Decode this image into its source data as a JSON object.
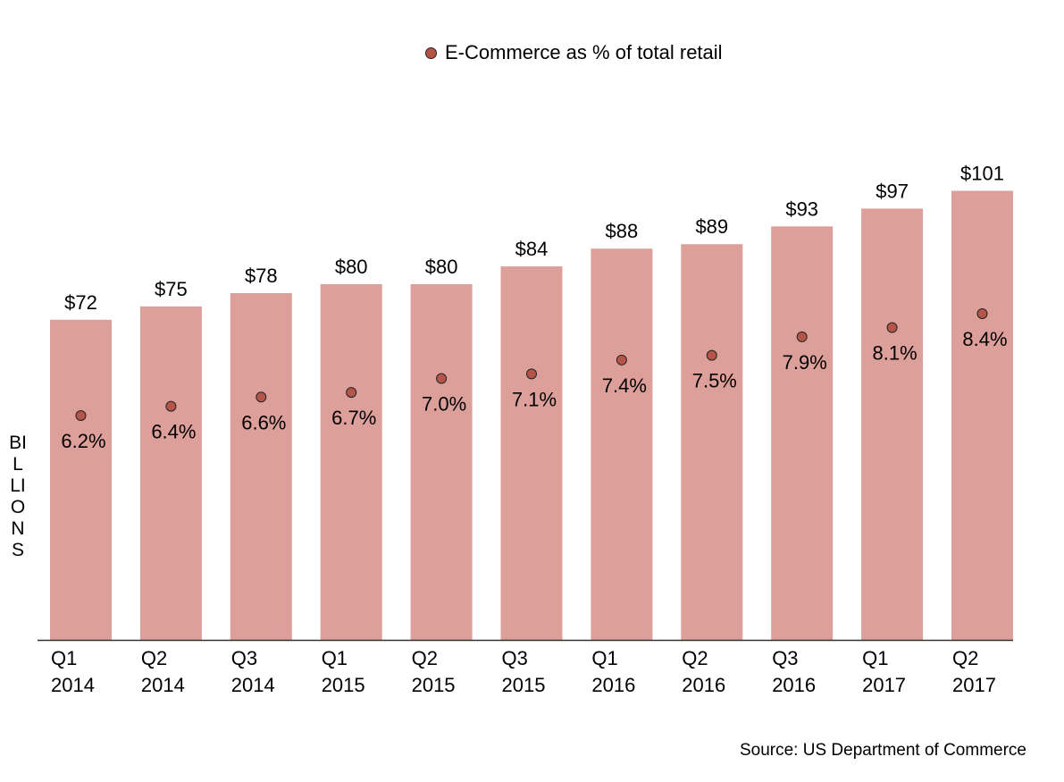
{
  "chart_data": {
    "type": "bar",
    "categories": [
      [
        "Q1",
        "2014"
      ],
      [
        "Q2",
        "2014"
      ],
      [
        "Q3",
        "2014"
      ],
      [
        "Q1",
        "2015"
      ],
      [
        "Q2",
        "2015"
      ],
      [
        "Q3",
        "2015"
      ],
      [
        "Q1",
        "2016"
      ],
      [
        "Q2",
        "2016"
      ],
      [
        "Q3",
        "2016"
      ],
      [
        "Q1",
        "2017"
      ],
      [
        "Q2",
        "2017"
      ]
    ],
    "series": [
      {
        "type": "bar",
        "values": [
          72,
          75,
          78,
          80,
          80,
          84,
          88,
          89,
          93,
          97,
          101
        ],
        "labels": [
          "$72",
          "$75",
          "$78",
          "$80",
          "$80",
          "$84",
          "$88",
          "$89",
          "$93",
          "$97",
          "$101"
        ],
        "color": "#dc9f99"
      },
      {
        "type": "scatter",
        "name": "E-Commerce as % of total retail",
        "values": [
          6.2,
          6.4,
          6.6,
          6.7,
          7.0,
          7.1,
          7.4,
          7.5,
          7.9,
          8.1,
          8.4
        ],
        "labels": [
          "6.2%",
          "6.4%",
          "6.6%",
          "6.7%",
          "7.0%",
          "7.1%",
          "7.4%",
          "7.5%",
          "7.9%",
          "8.1%",
          "8.4%"
        ],
        "color": "#b5554a"
      }
    ],
    "ylabel": "BILLIONS",
    "legend": "top-center",
    "grid": false,
    "source": "Source: US Department of Commerce"
  }
}
